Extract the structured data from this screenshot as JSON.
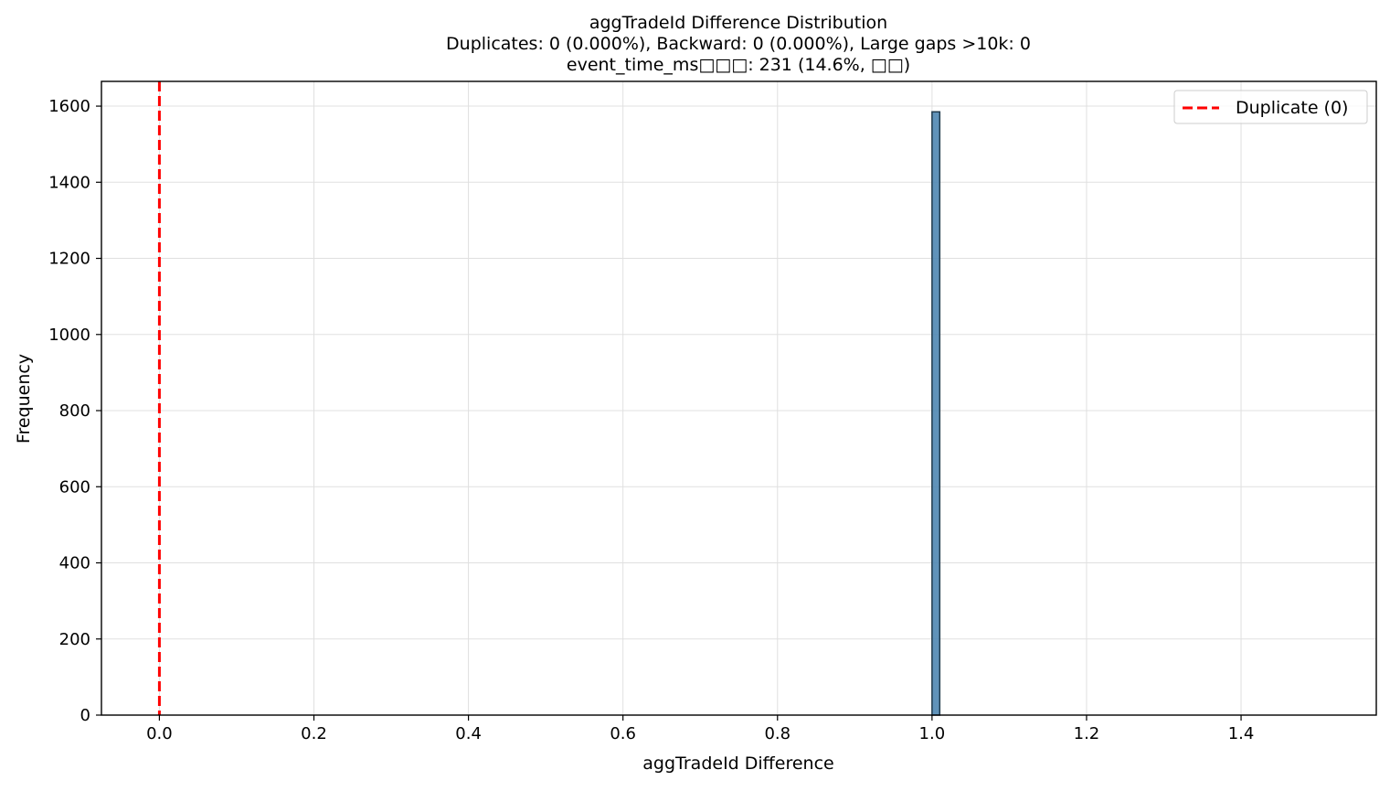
{
  "chart_data": {
    "type": "bar",
    "title_lines": [
      "aggTradeId Difference Distribution",
      "Duplicates: 0 (0.000%), Backward: 0 (0.000%), Large gaps >10k: 0",
      "event_time_ms□□□: 231 (14.6%, □□)"
    ],
    "xlabel": "aggTradeId Difference",
    "ylabel": "Frequency",
    "xlim": [
      -0.075,
      1.575
    ],
    "ylim": [
      0,
      1665
    ],
    "x_ticks": [
      0.0,
      0.2,
      0.4,
      0.6,
      0.8,
      1.0,
      1.2,
      1.4
    ],
    "x_tick_labels": [
      "0.0",
      "0.2",
      "0.4",
      "0.6",
      "0.8",
      "1.0",
      "1.2",
      "1.4"
    ],
    "y_ticks": [
      0,
      200,
      400,
      600,
      800,
      1000,
      1200,
      1400,
      1600
    ],
    "y_tick_labels": [
      "0",
      "200",
      "400",
      "600",
      "800",
      "1000",
      "1200",
      "1400",
      "1600"
    ],
    "bins": [
      {
        "x_start": 1.0,
        "x_end": 1.01,
        "count": 1585
      }
    ],
    "reference_lines": [
      {
        "x": 0,
        "label": "Duplicate (0)",
        "color": "#ff0000",
        "style": "dashed"
      }
    ],
    "grid": true,
    "legend_position": "top-right",
    "colors": {
      "bar_fill": "#4f87b2",
      "bar_edge": "#1f3a4d",
      "grid": "#e0e0e0",
      "reference_line": "#ff0000"
    }
  }
}
